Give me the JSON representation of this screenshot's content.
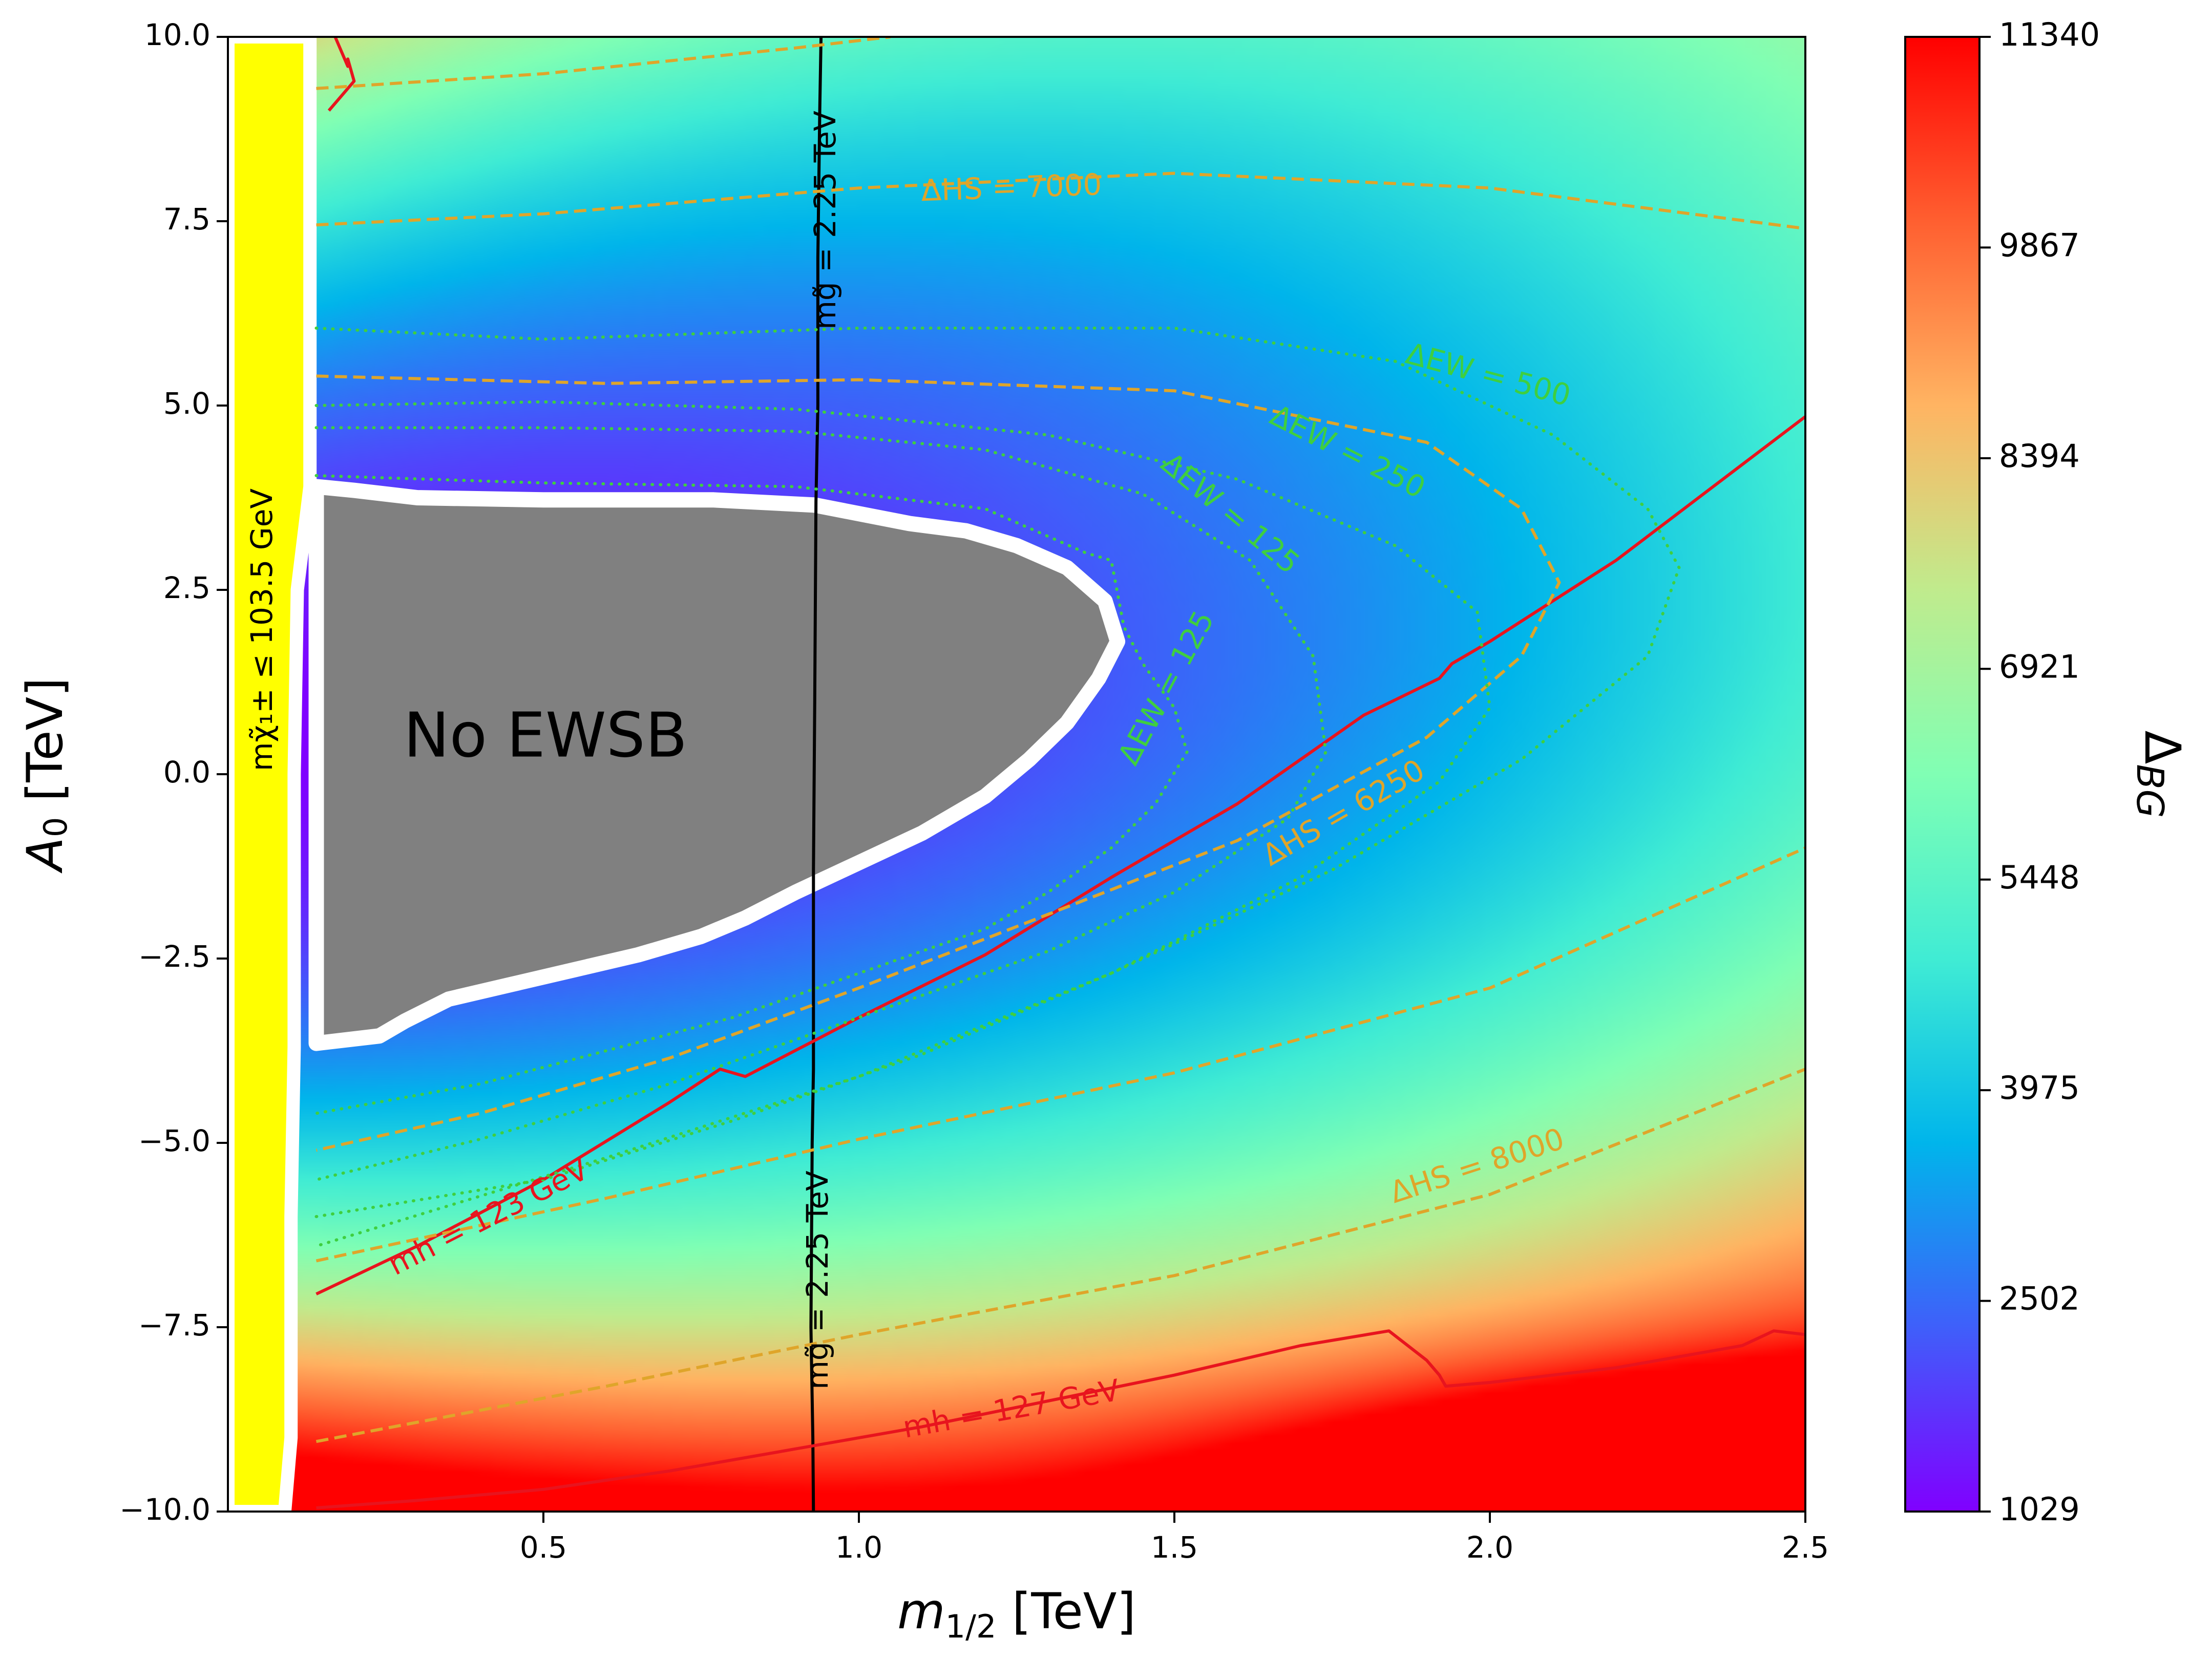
{
  "chart_data": {
    "type": "heatmap",
    "xlabel": "m1/2 [TeV]",
    "ylabel": "A0 [TeV]",
    "xlim": [
      0.0,
      2.5
    ],
    "ylim": [
      -10.0,
      10.0
    ],
    "xticks": [
      0.5,
      1.0,
      1.5,
      2.0,
      2.5
    ],
    "xtick_labels": [
      "0.5",
      "1.0",
      "1.5",
      "2.0",
      "2.5"
    ],
    "yticks": [
      10.0,
      7.5,
      5.0,
      2.5,
      0.0,
      -2.5,
      -5.0,
      -7.5,
      -10.0
    ],
    "ytick_labels": [
      "10.0",
      "7.5",
      "5.0",
      "2.5",
      "0.0",
      "−2.5",
      "−5.0",
      "−7.5",
      "−10.0"
    ],
    "colorbar": {
      "label": "ΔBG",
      "min": 1029,
      "max": 11340,
      "tick_values": [
        11340,
        9867,
        8394,
        6921,
        5448,
        3975,
        2502,
        1029
      ],
      "tick_labels": [
        "11340",
        "9867",
        "8394",
        "6921",
        "5448",
        "3975",
        "2502",
        "1029"
      ],
      "colormap": "rainbow",
      "colors": [
        "#8000ff",
        "#3f5ffa",
        "#00b5eb",
        "#40ecd4",
        "#80ffb4",
        "#c0eb8d",
        "#ffb462",
        "#ff5f30",
        "#ff0000"
      ]
    },
    "regions": [
      {
        "label": "No EWSB",
        "color": "#808080",
        "boundary": [
          [
            0.14,
            3.9
          ],
          [
            0.14,
            -3.65
          ],
          [
            0.24,
            -3.55
          ],
          [
            0.28,
            -3.35
          ],
          [
            0.35,
            -3.05
          ],
          [
            0.45,
            -2.85
          ],
          [
            0.55,
            -2.65
          ],
          [
            0.65,
            -2.45
          ],
          [
            0.75,
            -2.2
          ],
          [
            0.82,
            -1.95
          ],
          [
            0.9,
            -1.6
          ],
          [
            1.0,
            -1.2
          ],
          [
            1.1,
            -0.8
          ],
          [
            1.2,
            -0.3
          ],
          [
            1.27,
            0.2
          ],
          [
            1.33,
            0.7
          ],
          [
            1.38,
            1.3
          ],
          [
            1.41,
            1.8
          ],
          [
            1.39,
            2.35
          ],
          [
            1.33,
            2.8
          ],
          [
            1.25,
            3.1
          ],
          [
            1.17,
            3.3
          ],
          [
            1.08,
            3.4
          ],
          [
            0.93,
            3.65
          ],
          [
            0.77,
            3.72
          ],
          [
            0.5,
            3.72
          ],
          [
            0.3,
            3.75
          ],
          [
            0.2,
            3.85
          ]
        ]
      },
      {
        "label": "mχ̃₁± ≤ 103.5 GeV",
        "color": "#ffff00",
        "boundary": [
          [
            0.0,
            10.0
          ],
          [
            0.13,
            10.0
          ],
          [
            0.13,
            3.9
          ],
          [
            0.11,
            2.5
          ],
          [
            0.105,
            0.0
          ],
          [
            0.105,
            -3.7
          ],
          [
            0.1,
            -6.0
          ],
          [
            0.1,
            -9.0
          ],
          [
            0.09,
            -10.0
          ],
          [
            0.0,
            -10.0
          ]
        ]
      }
    ],
    "series": [
      {
        "name": "mg̃ = 2.25 TeV",
        "label": "mg̃ = 2.25 TeV",
        "style": "solid",
        "color": "#000000",
        "x": [
          0.94,
          0.938,
          0.935,
          0.935,
          0.932,
          0.93,
          0.928,
          0.928,
          0.926,
          0.924,
          0.925,
          0.927,
          0.928
        ],
        "y": [
          10.0,
          9.0,
          7.0,
          5.0,
          3.7,
          1.0,
          -1.3,
          -4.0,
          -5.0,
          -7.5,
          -8.0,
          -9.0,
          -10.0
        ]
      },
      {
        "name": "mh = 123 GeV",
        "label": "mh = 123 GeV",
        "style": "solid",
        "color": "#e8141e",
        "x": [
          0.14,
          0.3,
          0.5,
          0.7,
          0.78,
          0.82,
          1.0,
          1.2,
          1.4,
          1.6,
          1.8,
          1.92,
          1.94,
          2.0,
          2.2,
          2.4,
          2.5
        ],
        "y": [
          -7.05,
          -6.4,
          -5.5,
          -4.45,
          -4.0,
          -4.1,
          -3.3,
          -2.45,
          -1.4,
          -0.4,
          0.8,
          1.3,
          1.5,
          1.8,
          2.9,
          4.2,
          4.85
        ]
      },
      {
        "name": "mh = 127 GeV",
        "label": "mh = 127 GeV",
        "style": "solid",
        "color": "#e8141e",
        "x": [
          0.14,
          0.3,
          0.5,
          0.7,
          0.9,
          1.1,
          1.3,
          1.5,
          1.7,
          1.84,
          1.9,
          1.92,
          1.93,
          2.0,
          2.2,
          2.4,
          2.45,
          2.5
        ],
        "y": [
          -9.95,
          -9.85,
          -9.7,
          -9.45,
          -9.15,
          -8.85,
          -8.5,
          -8.15,
          -7.75,
          -7.55,
          -7.95,
          -8.15,
          -8.3,
          -8.25,
          -8.05,
          -7.75,
          -7.55,
          -7.6
        ]
      },
      {
        "name": "mh upper-left",
        "label": "",
        "style": "solid",
        "color": "#e8141e",
        "x": [
          0.17,
          0.19,
          0.19,
          0.2,
          0.18,
          0.16
        ],
        "y": [
          10.0,
          9.6,
          9.7,
          9.4,
          9.2,
          9.0
        ]
      },
      {
        "name": "ΔHS = 7000",
        "label": "ΔHS = 7000",
        "style": "dashed",
        "color": "#dfa52a",
        "x": [
          0.14,
          0.5,
          1.0,
          1.5,
          2.0,
          2.5
        ],
        "y": [
          7.45,
          7.6,
          7.95,
          8.15,
          7.95,
          7.4
        ]
      },
      {
        "name": "ΔHS top",
        "label": "",
        "style": "dashed",
        "color": "#dfa52a",
        "x": [
          0.14,
          0.5,
          0.9,
          1.05
        ],
        "y": [
          9.3,
          9.5,
          9.85,
          10.0
        ]
      },
      {
        "name": "ΔHS = 6250",
        "label": "ΔHS = 6250",
        "style": "dashed",
        "color": "#dfa52a",
        "x": [
          0.14,
          0.6,
          1.0,
          1.5,
          1.9,
          2.05,
          2.11,
          2.05,
          1.9,
          1.6,
          1.3,
          1.0,
          0.7,
          0.4,
          0.14
        ],
        "y": [
          5.4,
          5.3,
          5.35,
          5.2,
          4.5,
          3.6,
          2.6,
          1.6,
          0.5,
          -0.9,
          -1.9,
          -2.9,
          -3.85,
          -4.6,
          -5.1
        ]
      },
      {
        "name": "ΔHS lower",
        "label": "",
        "style": "dashed",
        "color": "#dfa52a",
        "x": [
          0.14,
          0.6,
          1.0,
          1.5,
          2.0,
          2.5
        ],
        "y": [
          -6.6,
          -5.75,
          -4.95,
          -4.05,
          -2.9,
          -1.0
        ]
      },
      {
        "name": "ΔHS = 8000",
        "label": "ΔHS = 8000",
        "style": "dashed",
        "color": "#dfa52a",
        "x": [
          0.14,
          0.6,
          1.0,
          1.5,
          2.0,
          2.5
        ],
        "y": [
          -9.05,
          -8.3,
          -7.6,
          -6.8,
          -5.7,
          -4.0
        ]
      },
      {
        "name": "ΔEW = 125 inner",
        "label": "ΔEW = 125",
        "style": "dotted",
        "color": "#3fcf3f",
        "x": [
          0.14,
          0.5,
          0.9,
          1.2,
          1.36,
          1.4,
          1.42,
          1.45,
          1.5,
          1.52,
          1.47,
          1.4,
          1.3,
          1.2,
          1.0,
          0.8,
          0.6,
          0.4,
          0.14
        ],
        "y": [
          4.05,
          3.95,
          3.9,
          3.6,
          3.0,
          2.9,
          2.0,
          1.5,
          0.9,
          0.3,
          -0.4,
          -1.0,
          -1.6,
          -2.1,
          -2.7,
          -3.3,
          -3.75,
          -4.2,
          -4.6
        ]
      },
      {
        "name": "ΔEW = 125",
        "label": "ΔEW = 125",
        "style": "dotted",
        "color": "#3fcf3f",
        "x": [
          0.14,
          0.5,
          0.9,
          1.2,
          1.45,
          1.62,
          1.72,
          1.74,
          1.68,
          1.5,
          1.3,
          1.0,
          0.7,
          0.4,
          0.14
        ],
        "y": [
          4.7,
          4.7,
          4.65,
          4.4,
          3.8,
          2.9,
          1.6,
          0.3,
          -0.6,
          -1.6,
          -2.4,
          -3.3,
          -4.2,
          -4.95,
          -5.5
        ]
      },
      {
        "name": "ΔEW = 250",
        "label": "ΔEW = 250",
        "style": "dotted",
        "color": "#3fcf3f",
        "x": [
          0.14,
          0.5,
          0.9,
          1.3,
          1.6,
          1.85,
          1.98,
          2.0,
          1.92,
          1.7,
          1.4,
          1.1,
          0.8,
          0.5,
          0.14
        ],
        "y": [
          5.0,
          5.05,
          4.95,
          4.6,
          4.0,
          3.1,
          2.2,
          0.9,
          -0.1,
          -1.4,
          -2.7,
          -3.8,
          -4.7,
          -5.5,
          -6.0
        ]
      },
      {
        "name": "ΔEW = 500",
        "label": "ΔEW = 500",
        "style": "dotted",
        "color": "#3fcf3f",
        "x": [
          0.14,
          0.5,
          1.0,
          1.5,
          1.85,
          2.1,
          2.25,
          2.3,
          2.25,
          2.05,
          1.75,
          1.4,
          1.0,
          0.6,
          0.14
        ],
        "y": [
          6.05,
          5.9,
          6.05,
          6.05,
          5.6,
          4.6,
          3.6,
          2.8,
          1.6,
          0.2,
          -1.3,
          -2.7,
          -4.1,
          -5.2,
          -6.4
        ]
      }
    ]
  }
}
